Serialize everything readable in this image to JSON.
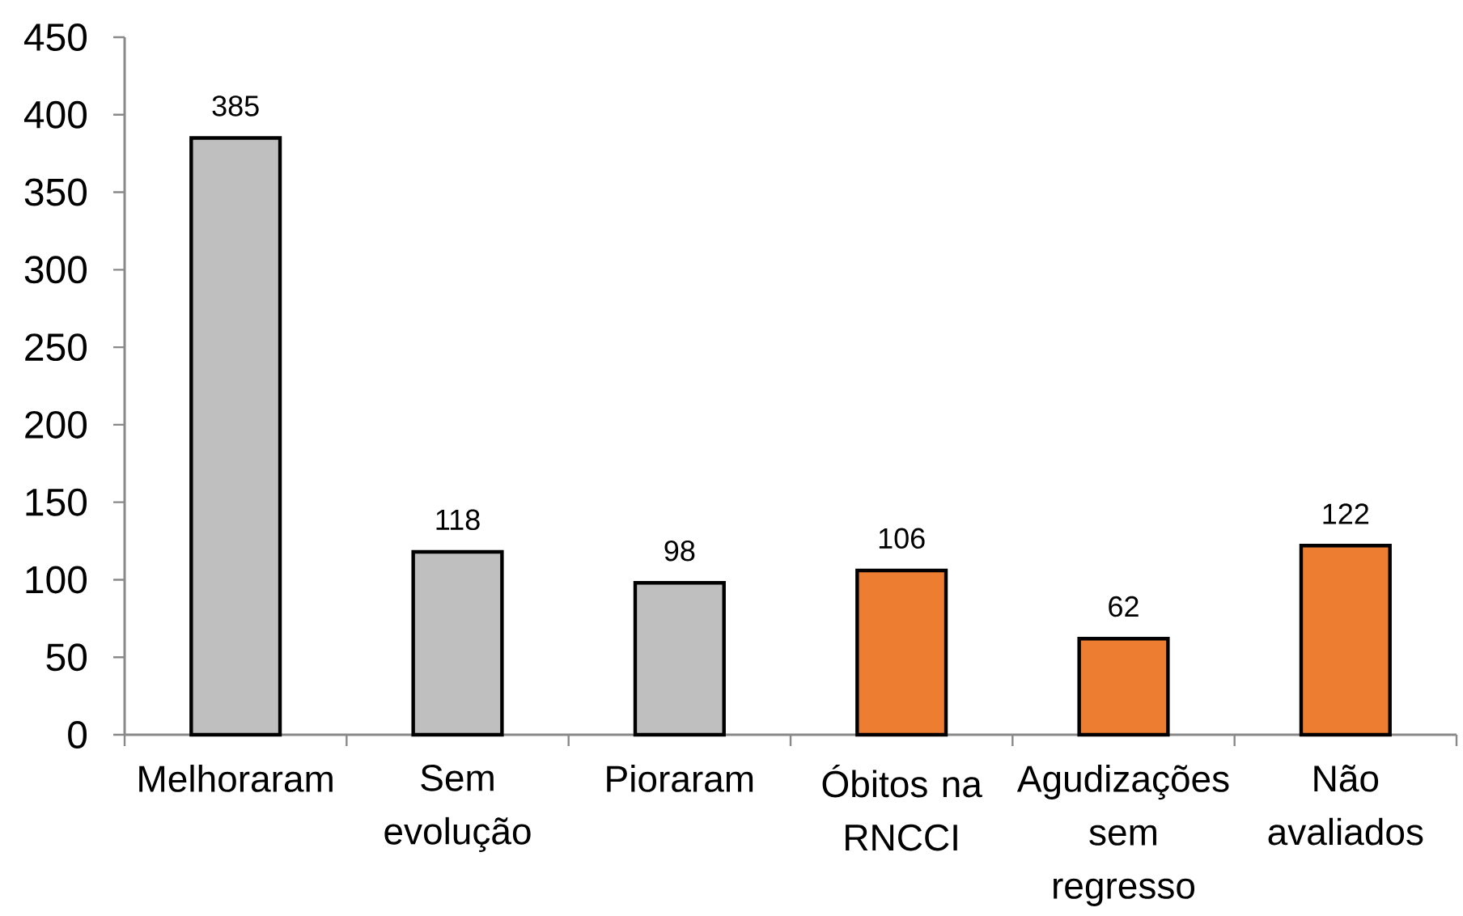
{
  "chart_data": {
    "type": "bar",
    "categories": [
      "Melhoraram",
      "Sem evolução",
      "Pioraram",
      "Óbitos na RNCCI",
      "Agudizações sem regresso",
      "Não avaliados"
    ],
    "values": [
      385,
      118,
      98,
      106,
      62,
      122
    ],
    "colors": [
      "#bfbfbf",
      "#bfbfbf",
      "#bfbfbf",
      "#ed7d31",
      "#ed7d31",
      "#ed7d31"
    ],
    "ylim": [
      0,
      450
    ],
    "yticks": [
      0,
      50,
      100,
      150,
      200,
      250,
      300,
      350,
      400,
      450
    ],
    "data_labels": true
  }
}
